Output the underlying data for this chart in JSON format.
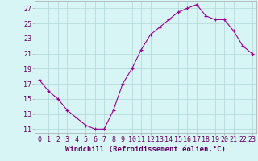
{
  "x": [
    0,
    1,
    2,
    3,
    4,
    5,
    6,
    7,
    8,
    9,
    10,
    11,
    12,
    13,
    14,
    15,
    16,
    17,
    18,
    19,
    20,
    21,
    22,
    23
  ],
  "y": [
    17.5,
    16.0,
    15.0,
    13.5,
    12.5,
    11.5,
    11.0,
    11.0,
    13.5,
    17.0,
    19.0,
    21.5,
    23.5,
    24.5,
    25.5,
    26.5,
    27.0,
    27.5,
    26.0,
    25.5,
    25.5,
    24.0,
    22.0,
    21.0
  ],
  "line_color": "#990099",
  "marker": "+",
  "marker_size": 3,
  "bg_color": "#d8f5f5",
  "grid_color": "#b0d8d8",
  "yticks": [
    11,
    13,
    15,
    17,
    19,
    21,
    23,
    25,
    27
  ],
  "xtick_labels": [
    "0",
    "1",
    "2",
    "3",
    "4",
    "5",
    "6",
    "7",
    "8",
    "9",
    "10",
    "11",
    "12",
    "13",
    "14",
    "15",
    "16",
    "17",
    "18",
    "19",
    "20",
    "21",
    "22",
    "23"
  ],
  "xlabel": "Windchill (Refroidissement éolien,°C)",
  "xlabel_color": "#660066",
  "xlabel_fontsize": 6.5,
  "tick_fontsize": 6.0,
  "tick_color": "#660066",
  "ylim": [
    10.5,
    28.0
  ],
  "xlim": [
    -0.5,
    23.5
  ],
  "spine_color": "#aaaaaa"
}
